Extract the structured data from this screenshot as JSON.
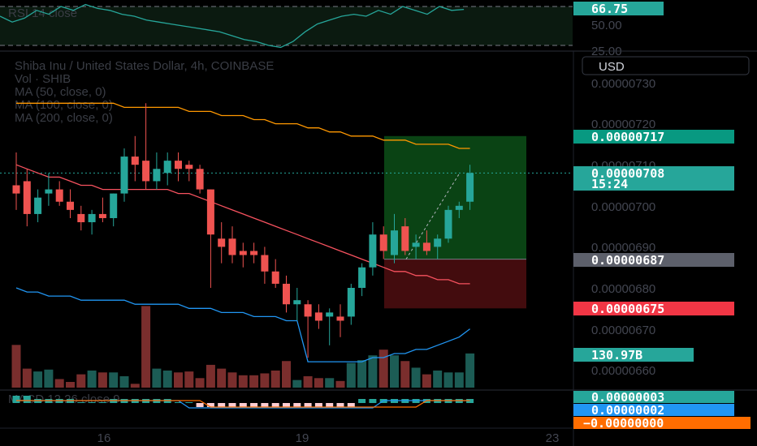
{
  "header": {
    "title": "Shiba Inu / United States Dollar, 4h, COINBASE",
    "indicators": [
      "Vol · SHIB",
      "MA (50, close, 0)",
      "MA (100, close, 0)",
      "MA (200, close, 0)"
    ],
    "currency_button": "USD"
  },
  "rsi_panel": {
    "label": "RSI 14 close",
    "value": "66.75",
    "ticks": [
      "50.00",
      "25.00"
    ],
    "values": [
      60,
      54,
      58,
      66,
      62,
      70,
      66,
      72,
      68,
      66,
      62,
      60,
      56,
      54,
      52,
      50,
      48,
      46,
      44,
      40,
      36,
      34,
      30,
      28,
      34,
      44,
      52,
      56,
      60,
      62,
      60,
      66,
      62,
      70,
      66,
      62,
      70,
      66,
      67
    ]
  },
  "price_axis": {
    "ticks": [
      "0.00000730",
      "0.00000720",
      "0.00000710",
      "0.00000700",
      "0.00000690",
      "0.00000680",
      "0.00000670",
      "0.00000660"
    ]
  },
  "badges": {
    "target": "0.00000717",
    "current": "0.00000708",
    "countdown": "15:24",
    "entry": "0.00000687",
    "stop": "0.00000675",
    "volume": "130.97B",
    "macd1": "0.00000003",
    "macd2": "0.00000002",
    "macd3": "−0.00000000"
  },
  "time_axis": {
    "labels": [
      "16",
      "19",
      "23"
    ]
  },
  "macd_panel": {
    "label": "MACD 12 26 close 9"
  },
  "colors": {
    "up": "#26a69a",
    "down": "#ef5350",
    "ma50": "#f7525f",
    "ma100": "#ff9800",
    "ma200": "#2196f3",
    "target_badge": "#089981",
    "current_badge": "#26a69a",
    "entry_badge": "#5d606b",
    "stop_badge": "#f23645"
  },
  "chart_data": {
    "type": "candlestick",
    "title": "Shiba Inu / United States Dollar, 4h, COINBASE",
    "ylim": [
      6.55e-06,
      7.35e-06
    ],
    "candles": [
      {
        "o": 7.05e-06,
        "h": 7.13e-06,
        "l": 6.99e-06,
        "c": 7.03e-06
      },
      {
        "o": 7.06e-06,
        "h": 7.09e-06,
        "l": 6.95e-06,
        "c": 6.98e-06
      },
      {
        "o": 6.98e-06,
        "h": 7.04e-06,
        "l": 6.96e-06,
        "c": 7.02e-06
      },
      {
        "o": 7.03e-06,
        "h": 7.08e-06,
        "l": 7e-06,
        "c": 7.04e-06
      },
      {
        "o": 7.04e-06,
        "h": 7.06e-06,
        "l": 7e-06,
        "c": 7.01e-06
      },
      {
        "o": 7.01e-06,
        "h": 7.04e-06,
        "l": 6.97e-06,
        "c": 6.99e-06
      },
      {
        "o": 6.98e-06,
        "h": 7e-06,
        "l": 6.94e-06,
        "c": 6.96e-06
      },
      {
        "o": 6.96e-06,
        "h": 6.99e-06,
        "l": 6.93e-06,
        "c": 6.98e-06
      },
      {
        "o": 6.98e-06,
        "h": 7.02e-06,
        "l": 6.96e-06,
        "c": 6.97e-06
      },
      {
        "o": 6.97e-06,
        "h": 7.03e-06,
        "l": 6.95e-06,
        "c": 7.03e-06
      },
      {
        "o": 7.03e-06,
        "h": 7.14e-06,
        "l": 7.01e-06,
        "c": 7.12e-06
      },
      {
        "o": 7.12e-06,
        "h": 7.17e-06,
        "l": 7.06e-06,
        "c": 7.1e-06
      },
      {
        "o": 7.11e-06,
        "h": 7.25e-06,
        "l": 7.04e-06,
        "c": 7.06e-06
      },
      {
        "o": 7.06e-06,
        "h": 7.13e-06,
        "l": 7.04e-06,
        "c": 7.09e-06
      },
      {
        "o": 7.08e-06,
        "h": 7.13e-06,
        "l": 7.05e-06,
        "c": 7.11e-06
      },
      {
        "o": 7.11e-06,
        "h": 7.13e-06,
        "l": 7.06e-06,
        "c": 7.09e-06
      },
      {
        "o": 7.1e-06,
        "h": 7.11e-06,
        "l": 7.06e-06,
        "c": 7.09e-06
      },
      {
        "o": 7.09e-06,
        "h": 7.1e-06,
        "l": 7.03e-06,
        "c": 7.04e-06
      },
      {
        "o": 7.04e-06,
        "h": 7.04e-06,
        "l": 6.8e-06,
        "c": 6.93e-06
      },
      {
        "o": 6.92e-06,
        "h": 6.96e-06,
        "l": 6.86e-06,
        "c": 6.9e-06
      },
      {
        "o": 6.92e-06,
        "h": 6.95e-06,
        "l": 6.86e-06,
        "c": 6.88e-06
      },
      {
        "o": 6.89e-06,
        "h": 6.91e-06,
        "l": 6.85e-06,
        "c": 6.88e-06
      },
      {
        "o": 6.89e-06,
        "h": 6.91e-06,
        "l": 6.86e-06,
        "c": 6.88e-06
      },
      {
        "o": 6.88e-06,
        "h": 6.9e-06,
        "l": 6.81e-06,
        "c": 6.84e-06
      },
      {
        "o": 6.84e-06,
        "h": 6.87e-06,
        "l": 6.8e-06,
        "c": 6.81e-06
      },
      {
        "o": 6.81e-06,
        "h": 6.83e-06,
        "l": 6.74e-06,
        "c": 6.76e-06
      },
      {
        "o": 6.76e-06,
        "h": 6.8e-06,
        "l": 6.72e-06,
        "c": 6.77e-06
      },
      {
        "o": 6.76e-06,
        "h": 6.77e-06,
        "l": 6.63e-06,
        "c": 6.73e-06
      },
      {
        "o": 6.74e-06,
        "h": 6.76e-06,
        "l": 6.7e-06,
        "c": 6.72e-06
      },
      {
        "o": 6.73e-06,
        "h": 6.75e-06,
        "l": 6.66e-06,
        "c": 6.74e-06
      },
      {
        "o": 6.73e-06,
        "h": 6.76e-06,
        "l": 6.68e-06,
        "c": 6.72e-06
      },
      {
        "o": 6.73e-06,
        "h": 6.81e-06,
        "l": 6.71e-06,
        "c": 6.8e-06
      },
      {
        "o": 6.8e-06,
        "h": 6.86e-06,
        "l": 6.78e-06,
        "c": 6.85e-06
      },
      {
        "o": 6.85e-06,
        "h": 6.96e-06,
        "l": 6.83e-06,
        "c": 6.93e-06
      },
      {
        "o": 6.93e-06,
        "h": 6.95e-06,
        "l": 6.87e-06,
        "c": 6.89e-06
      },
      {
        "o": 6.88e-06,
        "h": 6.98e-06,
        "l": 6.86e-06,
        "c": 6.94e-06
      },
      {
        "o": 6.95e-06,
        "h": 6.97e-06,
        "l": 6.88e-06,
        "c": 6.89e-06
      },
      {
        "o": 6.9e-06,
        "h": 6.93e-06,
        "l": 6.87e-06,
        "c": 6.91e-06
      },
      {
        "o": 6.91e-06,
        "h": 6.94e-06,
        "l": 6.88e-06,
        "c": 6.89e-06
      },
      {
        "o": 6.9e-06,
        "h": 6.93e-06,
        "l": 6.87e-06,
        "c": 6.92e-06
      },
      {
        "o": 6.92e-06,
        "h": 7e-06,
        "l": 6.91e-06,
        "c": 6.99e-06
      },
      {
        "o": 6.99e-06,
        "h": 7.01e-06,
        "l": 6.97e-06,
        "c": 7e-06
      },
      {
        "o": 7.01e-06,
        "h": 7.1e-06,
        "l": 6.99e-06,
        "c": 7.08e-06
      }
    ],
    "volume": [
      45,
      20,
      17,
      19,
      9,
      6,
      14,
      18,
      16,
      16,
      12,
      4,
      86,
      20,
      18,
      16,
      17,
      10,
      24,
      20,
      16,
      13,
      13,
      15,
      18,
      28,
      8,
      12,
      10,
      10,
      7,
      26,
      29,
      34,
      40,
      34,
      28,
      21,
      14,
      18,
      16,
      16,
      36
    ],
    "ma50": [
      7.1e-06,
      7.09e-06,
      7.08e-06,
      7.07e-06,
      7.07e-06,
      7.06e-06,
      7.05e-06,
      7.05e-06,
      7.04e-06,
      7.04e-06,
      7.04e-06,
      7.04e-06,
      7.04e-06,
      7.04e-06,
      7.04e-06,
      7.03e-06,
      7.03e-06,
      7.02e-06,
      7.01e-06,
      7e-06,
      6.99e-06,
      6.98e-06,
      6.97e-06,
      6.96e-06,
      6.95e-06,
      6.94e-06,
      6.93e-06,
      6.92e-06,
      6.91e-06,
      6.9e-06,
      6.89e-06,
      6.88e-06,
      6.87e-06,
      6.86e-06,
      6.85e-06,
      6.84e-06,
      6.84e-06,
      6.83e-06,
      6.83e-06,
      6.82e-06,
      6.82e-06,
      6.81e-06,
      6.81e-06
    ],
    "ma100": [
      7.25e-06,
      7.25e-06,
      7.25e-06,
      7.25e-06,
      7.25e-06,
      7.25e-06,
      7.25e-06,
      7.25e-06,
      7.25e-06,
      7.25e-06,
      7.24e-06,
      7.24e-06,
      7.24e-06,
      7.24e-06,
      7.24e-06,
      7.24e-06,
      7.23e-06,
      7.23e-06,
      7.23e-06,
      7.22e-06,
      7.22e-06,
      7.22e-06,
      7.21e-06,
      7.21e-06,
      7.2e-06,
      7.2e-06,
      7.2e-06,
      7.19e-06,
      7.19e-06,
      7.18e-06,
      7.18e-06,
      7.17e-06,
      7.17e-06,
      7.17e-06,
      7.16e-06,
      7.16e-06,
      7.16e-06,
      7.15e-06,
      7.15e-06,
      7.15e-06,
      7.15e-06,
      7.14e-06,
      7.14e-06
    ],
    "ma200": [
      6.8e-06,
      6.79e-06,
      6.79e-06,
      6.78e-06,
      6.78e-06,
      6.78e-06,
      6.77e-06,
      6.77e-06,
      6.77e-06,
      6.77e-06,
      6.77e-06,
      6.76e-06,
      6.76e-06,
      6.76e-06,
      6.76e-06,
      6.76e-06,
      6.75e-06,
      6.75e-06,
      6.75e-06,
      6.74e-06,
      6.74e-06,
      6.74e-06,
      6.73e-06,
      6.73e-06,
      6.73e-06,
      6.72e-06,
      6.72e-06,
      6.62e-06,
      6.62e-06,
      6.62e-06,
      6.62e-06,
      6.62e-06,
      6.62e-06,
      6.63e-06,
      6.63e-06,
      6.64e-06,
      6.64e-06,
      6.65e-06,
      6.65e-06,
      6.66e-06,
      6.67e-06,
      6.68e-06,
      6.7e-06
    ],
    "position": {
      "entry": 6.87e-06,
      "target": 7.17e-06,
      "stop": 6.75e-06
    },
    "macd_hist": [
      2,
      2,
      1,
      1,
      1,
      1,
      0,
      0,
      0,
      1,
      1,
      1,
      1,
      1,
      1,
      0,
      0,
      -1,
      -1,
      -1,
      -1,
      -1,
      -1,
      -1,
      -1,
      -1,
      -1,
      -1,
      -1,
      -1,
      -1,
      -1,
      1,
      1,
      1,
      1,
      1,
      1,
      1,
      1,
      1,
      1,
      1
    ]
  }
}
